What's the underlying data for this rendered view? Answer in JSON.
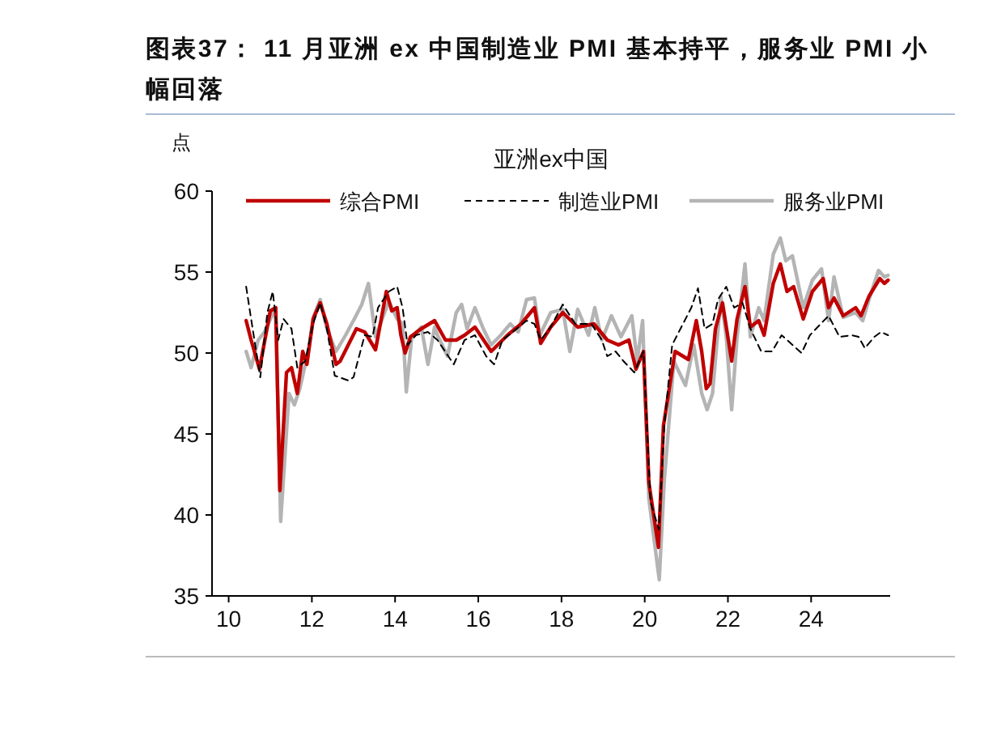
{
  "chart_data": {
    "type": "line",
    "title": "图表37： 11 月亚洲 ex 中国制造业 PMI 基本持平，服务业 PMI 小幅回落",
    "subtitle": "亚洲ex中国",
    "ylabel": "点",
    "xlim": [
      9.6,
      25.9
    ],
    "xticks": [
      10,
      12,
      14,
      16,
      18,
      20,
      22,
      24
    ],
    "ylim": [
      35,
      60
    ],
    "yticks": [
      35,
      40,
      45,
      50,
      55,
      60
    ],
    "grid": false,
    "legend": "top",
    "marker": "none",
    "series": [
      {
        "name": "综合PMI",
        "color": "#c00000",
        "line_style": "solid",
        "x": [
          10.42,
          10.54,
          10.74,
          11.0,
          11.13,
          11.23,
          11.39,
          11.51,
          11.65,
          11.78,
          11.88,
          12.03,
          12.2,
          12.36,
          12.58,
          12.68,
          13.07,
          13.27,
          13.53,
          13.79,
          13.92,
          14.05,
          14.14,
          14.24,
          14.37,
          14.63,
          14.95,
          15.21,
          15.47,
          15.67,
          15.92,
          16.31,
          16.7,
          17.03,
          17.35,
          17.5,
          17.74,
          18.03,
          18.39,
          18.78,
          19.1,
          19.37,
          19.62,
          19.79,
          19.97,
          20.1,
          20.33,
          20.45,
          20.73,
          21.05,
          21.24,
          21.37,
          21.48,
          21.57,
          21.7,
          21.87,
          22.09,
          22.22,
          22.41,
          22.54,
          22.74,
          22.87,
          23.09,
          23.26,
          23.42,
          23.58,
          23.81,
          24.03,
          24.29,
          24.42,
          24.55,
          24.77,
          25.07,
          25.2,
          25.39,
          25.65,
          25.76,
          25.85
        ],
        "values": [
          52.0,
          50.8,
          49.0,
          52.6,
          52.8,
          41.5,
          48.8,
          49.1,
          47.5,
          50.1,
          49.3,
          52.1,
          53.1,
          51.8,
          49.3,
          49.5,
          51.5,
          51.3,
          50.2,
          53.8,
          52.6,
          52.8,
          51.1,
          50.0,
          51.0,
          51.5,
          52.0,
          50.8,
          50.8,
          51.1,
          51.6,
          50.1,
          51.1,
          51.8,
          52.8,
          50.6,
          51.6,
          52.5,
          51.6,
          51.8,
          50.8,
          50.5,
          50.8,
          49.0,
          50.1,
          42,
          38,
          45.5,
          50.1,
          49.6,
          52.0,
          50.1,
          47.8,
          48.1,
          51.5,
          53.1,
          49.5,
          52.1,
          54.1,
          51.6,
          52.0,
          51.1,
          54.3,
          55.5,
          53.8,
          54.1,
          52.1,
          53.8,
          54.6,
          52.8,
          53.4,
          52.3,
          52.8,
          52.3,
          53.5,
          54.6,
          54.3,
          54.5
        ]
      },
      {
        "name": "制造业PMI",
        "color": "#000000",
        "line_style": "dashed",
        "x": [
          10.42,
          10.54,
          10.76,
          10.93,
          11.06,
          11.19,
          11.32,
          11.51,
          11.65,
          11.84,
          12.03,
          12.2,
          12.36,
          12.55,
          12.88,
          13.0,
          13.27,
          13.46,
          13.59,
          13.85,
          14.05,
          14.18,
          14.3,
          14.5,
          14.79,
          15.02,
          15.28,
          15.41,
          15.67,
          15.92,
          16.19,
          16.38,
          16.58,
          16.83,
          17.16,
          17.35,
          17.5,
          17.74,
          18.03,
          18.33,
          18.72,
          18.97,
          19.1,
          19.3,
          19.49,
          19.75,
          19.97,
          20.14,
          20.34,
          20.47,
          20.66,
          20.86,
          21.12,
          21.28,
          21.44,
          21.63,
          21.76,
          21.96,
          22.15,
          22.35,
          22.54,
          22.8,
          23.06,
          23.29,
          23.51,
          23.77,
          23.97,
          24.23,
          24.42,
          24.68,
          24.98,
          25.14,
          25.29,
          25.52,
          25.68,
          25.85
        ],
        "values": [
          54.1,
          52.1,
          48.5,
          52.5,
          53.8,
          50.8,
          52.1,
          51.5,
          49.1,
          49.5,
          51.8,
          53.1,
          51.5,
          48.6,
          48.3,
          48.5,
          51.1,
          51.0,
          52.8,
          53.8,
          54.1,
          52.8,
          50.5,
          51.1,
          51.3,
          50.8,
          49.8,
          49.3,
          50.8,
          51.1,
          49.8,
          49.3,
          50.8,
          51.3,
          52.0,
          51.8,
          50.8,
          51.6,
          53.0,
          51.8,
          51.8,
          50.8,
          49.8,
          50.1,
          49.5,
          48.8,
          50.1,
          40.8,
          39.1,
          45.5,
          50.5,
          51.5,
          52.8,
          54.0,
          51.5,
          51.8,
          53.3,
          54.1,
          52.8,
          53.1,
          51.5,
          50.1,
          50.1,
          51.1,
          50.6,
          50.0,
          51.1,
          51.8,
          52.3,
          51.0,
          51.1,
          51.0,
          50.3,
          51.0,
          51.3,
          51.1
        ]
      },
      {
        "name": "服务业PMI",
        "color": "#b4b4b4",
        "line_style": "solid",
        "x": [
          10.42,
          10.54,
          10.71,
          10.86,
          11.13,
          11.25,
          11.45,
          11.58,
          11.71,
          11.91,
          12.05,
          12.2,
          12.36,
          12.58,
          12.81,
          13.04,
          13.2,
          13.36,
          13.53,
          13.72,
          13.85,
          14.05,
          14.18,
          14.27,
          14.4,
          14.63,
          14.79,
          14.95,
          15.02,
          15.26,
          15.47,
          15.6,
          15.73,
          15.92,
          16.12,
          16.31,
          16.54,
          16.77,
          16.96,
          17.16,
          17.35,
          17.48,
          17.74,
          18.03,
          18.2,
          18.39,
          18.65,
          18.8,
          18.97,
          19.2,
          19.43,
          19.69,
          19.82,
          19.95,
          20.1,
          20.35,
          20.47,
          20.7,
          20.98,
          21.18,
          21.37,
          21.5,
          21.63,
          21.83,
          21.96,
          22.09,
          22.22,
          22.41,
          22.54,
          22.74,
          22.87,
          23.09,
          23.26,
          23.39,
          23.55,
          23.81,
          24.03,
          24.25,
          24.42,
          24.55,
          24.77,
          25.07,
          25.24,
          25.39,
          25.62,
          25.76,
          25.85
        ],
        "values": [
          50.1,
          49.1,
          50.8,
          51.3,
          52.8,
          39.6,
          47.5,
          46.8,
          47.8,
          50.1,
          52.3,
          53.3,
          51.5,
          50.1,
          51.1,
          52.2,
          53.0,
          54.3,
          51.0,
          52.3,
          53.2,
          52.1,
          51.8,
          47.6,
          51.0,
          51.6,
          49.3,
          51.6,
          51.1,
          49.8,
          52.5,
          53.0,
          51.5,
          52.8,
          51.5,
          50.5,
          51.1,
          51.8,
          51.3,
          53.3,
          53.4,
          51.1,
          52.5,
          52.7,
          50.1,
          52.7,
          51.1,
          52.8,
          50.8,
          52.3,
          51.0,
          52.3,
          49.5,
          52.0,
          41,
          36,
          42.1,
          49.5,
          48.0,
          50.5,
          47.5,
          46.5,
          47.5,
          53.5,
          51.0,
          46.5,
          51.0,
          55.5,
          51.0,
          52.8,
          52.0,
          56.1,
          57.1,
          55.7,
          56.0,
          52.8,
          54.5,
          55.2,
          52.0,
          54.7,
          52.2,
          52.5,
          52.0,
          53.3,
          55.1,
          54.7,
          54.8
        ]
      }
    ]
  }
}
